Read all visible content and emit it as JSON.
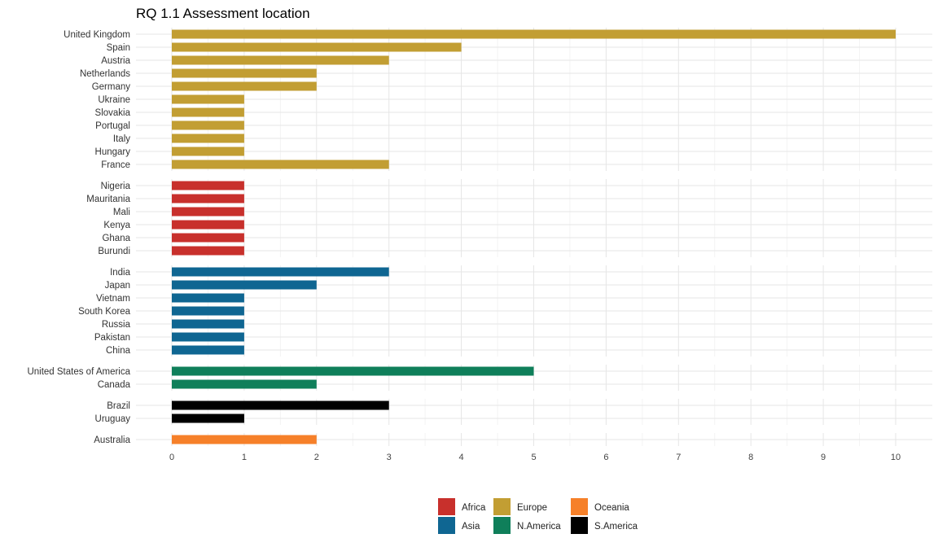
{
  "chart_data": {
    "type": "bar",
    "orientation": "horizontal",
    "faceted": true,
    "title": "RQ 1.1 Assessment location",
    "xlabel": "",
    "ylabel": "",
    "xlim": [
      0,
      10
    ],
    "x_ticks": [
      0,
      1,
      2,
      3,
      4,
      5,
      6,
      7,
      8,
      9,
      10
    ],
    "grid": true,
    "legend_position": "bottom",
    "legend": [
      {
        "name": "Africa",
        "color": "#c8302c"
      },
      {
        "name": "Asia",
        "color": "#0f6692"
      },
      {
        "name": "Europe",
        "color": "#c29e33"
      },
      {
        "name": "N.America",
        "color": "#0f7f5a"
      },
      {
        "name": "Oceania",
        "color": "#f68029"
      },
      {
        "name": "S.America",
        "color": "#000000"
      }
    ],
    "panels": [
      {
        "region": "Europe",
        "color": "#c29e33",
        "categories": [
          "United Kingdom",
          "Spain",
          "Austria",
          "Netherlands",
          "Germany",
          "Ukraine",
          "Slovakia",
          "Portugal",
          "Italy",
          "Hungary",
          "France"
        ],
        "values": [
          10,
          4,
          3,
          2,
          2,
          1,
          1,
          1,
          1,
          1,
          3
        ]
      },
      {
        "region": "Africa",
        "color": "#c8302c",
        "categories": [
          "Nigeria",
          "Mauritania",
          "Mali",
          "Kenya",
          "Ghana",
          "Burundi"
        ],
        "values": [
          1,
          1,
          1,
          1,
          1,
          1
        ]
      },
      {
        "region": "Asia",
        "color": "#0f6692",
        "categories": [
          "India",
          "Japan",
          "Vietnam",
          "South Korea",
          "Russia",
          "Pakistan",
          "China"
        ],
        "values": [
          3,
          2,
          1,
          1,
          1,
          1,
          1
        ]
      },
      {
        "region": "N.America",
        "color": "#0f7f5a",
        "categories": [
          "United States of America",
          "Canada"
        ],
        "values": [
          5,
          2
        ]
      },
      {
        "region": "S.America",
        "color": "#000000",
        "categories": [
          "Brazil",
          "Uruguay"
        ],
        "values": [
          3,
          1
        ]
      },
      {
        "region": "Oceania",
        "color": "#f68029",
        "categories": [
          "Australia"
        ],
        "values": [
          2
        ]
      }
    ]
  }
}
